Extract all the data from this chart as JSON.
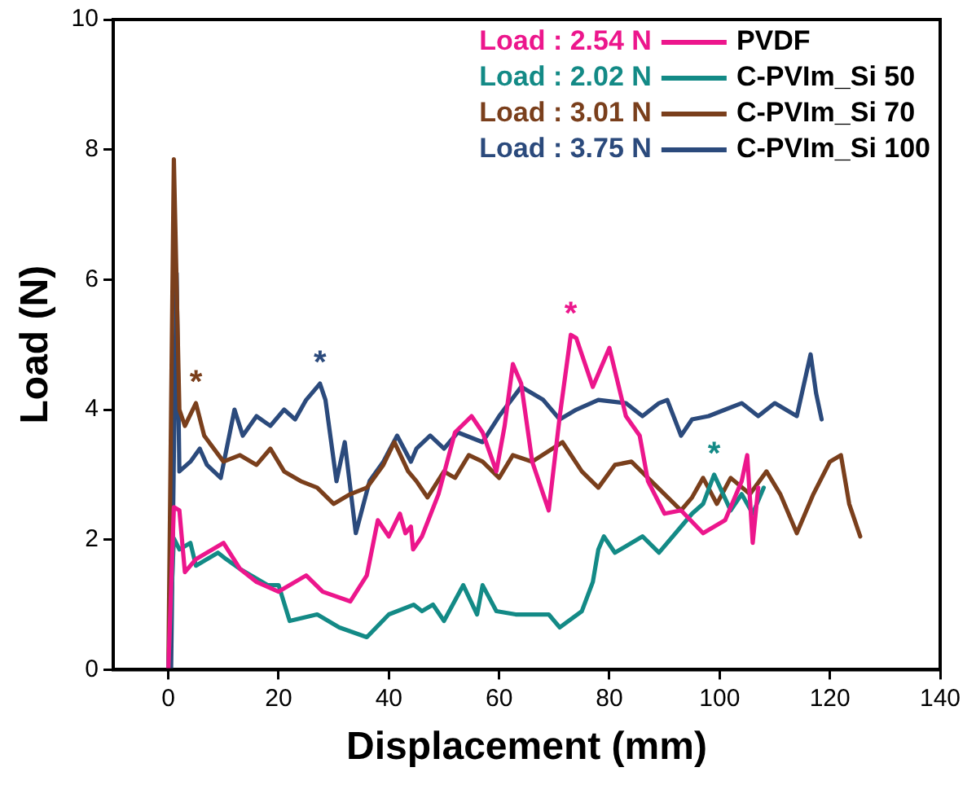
{
  "chart_data": {
    "type": "line",
    "xlabel": "Displacement (mm)",
    "ylabel": "Load (N)",
    "xlim": [
      -10,
      140
    ],
    "xticks": [
      0,
      20,
      40,
      60,
      80,
      100,
      120,
      140
    ],
    "ylim": [
      0,
      10
    ],
    "yticks": [
      0,
      2,
      4,
      6,
      8,
      10
    ],
    "legend": "top right",
    "line_style": "solid",
    "annotations": [
      "Load : 2.54 N",
      "Load : 2.02 N",
      "Load : 3.01 N",
      "Load : 3.75 N",
      {
        "text": "*",
        "x": 73,
        "y": 5.15
      },
      {
        "text": "*",
        "x": 99,
        "y": 3.0
      },
      {
        "text": "*",
        "x": 5,
        "y": 4.1
      },
      {
        "text": "*",
        "x": 27.5,
        "y": 4.4
      }
    ],
    "series": [
      {
        "name": "PVDF",
        "color": "#ec168c",
        "x": [
          0,
          1,
          2,
          3,
          5,
          10,
          13,
          16,
          20,
          25,
          28,
          33,
          36,
          38,
          40,
          42,
          43,
          44,
          44.4,
          46,
          49,
          52,
          55,
          57,
          59.5,
          61,
          62.5,
          64,
          66,
          69,
          71,
          73,
          74,
          77,
          80,
          83,
          85.5,
          87,
          90,
          93,
          97,
          101,
          104,
          105,
          106,
          107
        ],
        "values": [
          0,
          2.5,
          2.45,
          1.5,
          1.7,
          1.95,
          1.55,
          1.35,
          1.2,
          1.45,
          1.2,
          1.05,
          1.45,
          2.3,
          2.05,
          2.4,
          2.1,
          2.2,
          1.85,
          2.05,
          2.7,
          3.65,
          3.9,
          3.65,
          3.05,
          3.75,
          4.7,
          4.4,
          3.2,
          2.45,
          3.9,
          5.15,
          5.1,
          4.35,
          4.95,
          3.9,
          3.6,
          2.9,
          2.4,
          2.45,
          2.1,
          2.3,
          2.9,
          3.3,
          1.95,
          2.8
        ]
      },
      {
        "name": "C-PVIm_Si 50",
        "color": "#138a86",
        "x": [
          0,
          1,
          2,
          4,
          5,
          9,
          10.5,
          13,
          18,
          20,
          22,
          27,
          31,
          36,
          40,
          44.5,
          46,
          48,
          50,
          53.5,
          56,
          57,
          59.5,
          63,
          69,
          71,
          75,
          77,
          78,
          79,
          81,
          86,
          89,
          92,
          95,
          97,
          99,
          102,
          104,
          106,
          108
        ],
        "values": [
          0,
          2.02,
          1.85,
          1.95,
          1.6,
          1.8,
          1.7,
          1.55,
          1.3,
          1.3,
          0.75,
          0.85,
          0.65,
          0.5,
          0.85,
          1.0,
          0.9,
          1.0,
          0.75,
          1.3,
          0.85,
          1.3,
          0.9,
          0.85,
          0.85,
          0.65,
          0.9,
          1.35,
          1.85,
          2.05,
          1.8,
          2.05,
          1.8,
          2.1,
          2.4,
          2.55,
          3.0,
          2.45,
          2.7,
          2.4,
          2.8
        ]
      },
      {
        "name": "C-PVIm_Si 70",
        "color": "#7a3f1c",
        "x": [
          0,
          0.5,
          1,
          2,
          3,
          5,
          6.5,
          10,
          13,
          16,
          18.5,
          21,
          24,
          27,
          30,
          33,
          36,
          39,
          41,
          43.5,
          45,
          47,
          50,
          52,
          54.5,
          57,
          60,
          62.5,
          66,
          71.5,
          75,
          78,
          81,
          84,
          87,
          90,
          93,
          95,
          97,
          99.5,
          102,
          105.5,
          108.5,
          111,
          114,
          117,
          120,
          122,
          123.5,
          125.5
        ],
        "values": [
          0,
          4,
          7.85,
          4.0,
          3.75,
          4.1,
          3.6,
          3.2,
          3.3,
          3.15,
          3.4,
          3.05,
          2.9,
          2.8,
          2.55,
          2.7,
          2.8,
          3.15,
          3.5,
          3.05,
          2.9,
          2.65,
          3.05,
          2.95,
          3.3,
          3.2,
          2.95,
          3.3,
          3.2,
          3.5,
          3.05,
          2.8,
          3.15,
          3.2,
          2.95,
          2.7,
          2.45,
          2.65,
          2.95,
          2.55,
          2.95,
          2.7,
          3.05,
          2.7,
          2.1,
          2.7,
          3.2,
          3.3,
          2.55,
          2.05
        ]
      },
      {
        "name": "C-PVIm_Si 100",
        "color": "#2b4a7c",
        "x": [
          0.5,
          1,
          1.5,
          2,
          4,
          5.7,
          7,
          9.5,
          12,
          13.5,
          16,
          18.5,
          21,
          23,
          25,
          27.5,
          28.5,
          30.5,
          32,
          34,
          36.5,
          39,
          41.5,
          44,
          45,
          47.5,
          50,
          52.5,
          57,
          60,
          64,
          68,
          71,
          74,
          78,
          83,
          86,
          89,
          90.5,
          93,
          95,
          98,
          101,
          104,
          107,
          110,
          114,
          116.5,
          117.5,
          118.5
        ],
        "values": [
          0,
          3.3,
          6.1,
          3.05,
          3.2,
          3.4,
          3.15,
          2.95,
          4.0,
          3.6,
          3.9,
          3.75,
          4.0,
          3.85,
          4.15,
          4.4,
          4.15,
          2.9,
          3.5,
          2.1,
          2.9,
          3.2,
          3.6,
          3.2,
          3.4,
          3.6,
          3.4,
          3.65,
          3.5,
          3.9,
          4.35,
          4.15,
          3.85,
          4.0,
          4.15,
          4.1,
          3.9,
          4.1,
          4.15,
          3.6,
          3.85,
          3.9,
          4.0,
          4.1,
          3.9,
          4.1,
          3.9,
          4.85,
          4.25,
          3.85
        ]
      }
    ]
  }
}
